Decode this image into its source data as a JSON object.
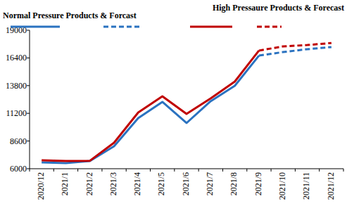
{
  "chart_data": {
    "type": "line",
    "categories": [
      "2020/12",
      "2021/1",
      "2021/2",
      "2021/3",
      "2021/4",
      "2021/5",
      "2021/6",
      "2021/7",
      "2021/8",
      "2021/9",
      "2021/10",
      "2021/11",
      "2021/12"
    ],
    "series": [
      {
        "name": "Normal Pressure Products & Forcast",
        "color": "#2a72c0",
        "line_style": "solid",
        "values": [
          6600,
          6530,
          6720,
          8110,
          10750,
          12270,
          10290,
          12340,
          13790,
          16620,
          null,
          null,
          null
        ]
      },
      {
        "name": "High Pressaure Products & Forecast",
        "color": "#c00000",
        "line_style": "solid",
        "values": [
          6790,
          6730,
          6750,
          8440,
          11280,
          12800,
          11150,
          12600,
          14180,
          17090,
          null,
          null,
          null
        ]
      },
      {
        "color": "#2a72c0",
        "line_style": "dashed",
        "values": [
          null,
          null,
          null,
          null,
          null,
          null,
          null,
          null,
          null,
          16620,
          16950,
          17220,
          17420
        ]
      },
      {
        "color": "#c00000",
        "line_style": "dashed",
        "values": [
          null,
          null,
          null,
          null,
          null,
          null,
          null,
          null,
          null,
          17090,
          17480,
          17610,
          17800
        ]
      }
    ],
    "ylim": [
      6000,
      19000
    ],
    "yticks": [
      6000,
      8600,
      11200,
      13800,
      16400,
      19000
    ],
    "grid": false
  }
}
